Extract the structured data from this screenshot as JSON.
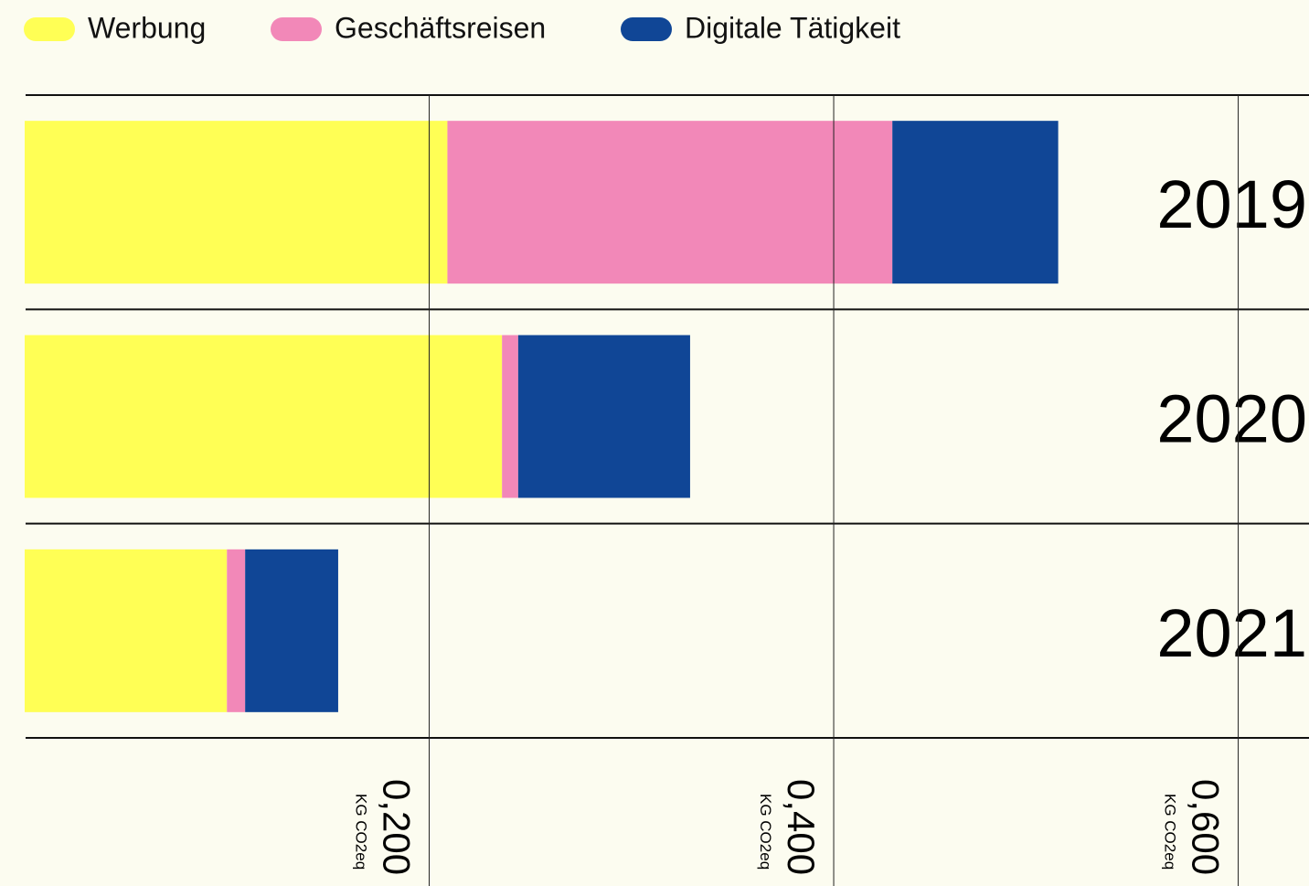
{
  "chart_data": {
    "type": "stacked-barh",
    "categories": [
      "2019",
      "2020",
      "2021"
    ],
    "series": [
      {
        "name": "Werbung",
        "color": "#ffff55",
        "values": [
          0.209,
          0.236,
          0.1
        ]
      },
      {
        "name": "Geschäftsreisen",
        "color": "#f288b8",
        "values": [
          0.22,
          0.008,
          0.009
        ]
      },
      {
        "name": "Digitale Tätigkeit",
        "color": "#104696",
        "values": [
          0.082,
          0.085,
          0.046
        ]
      }
    ],
    "xlim": [
      0,
      0.635
    ],
    "xticks": [
      {
        "value": 0.2,
        "label": "0,200"
      },
      {
        "value": 0.4,
        "label": "0,400"
      },
      {
        "value": 0.6,
        "label": "0,600"
      }
    ],
    "x_unit": "KG CO2eq",
    "grid": true,
    "legend": "top"
  }
}
